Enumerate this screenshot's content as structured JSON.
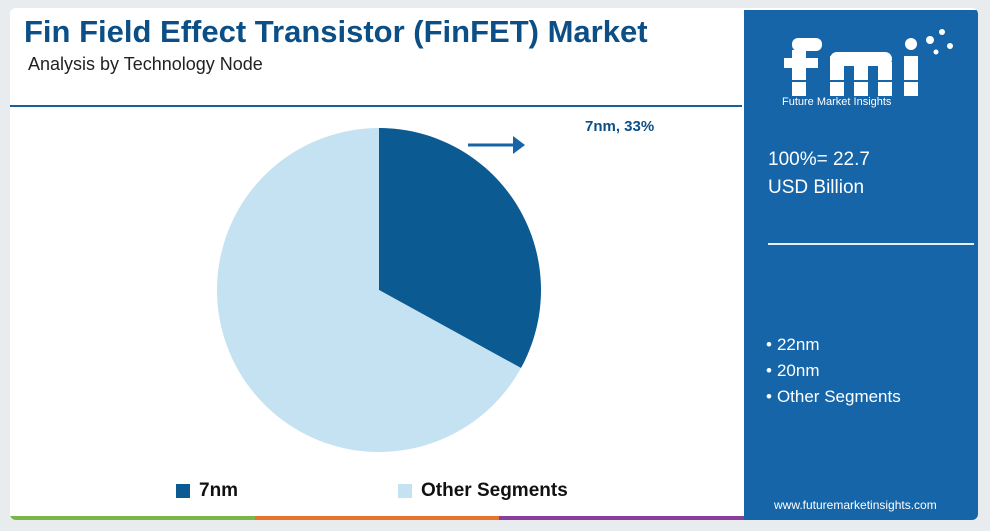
{
  "title": "Fin Field Effect Transistor (FinFET) Market",
  "subtitle": "Analysis by Technology Node",
  "chart_data": {
    "type": "pie",
    "categories": [
      "7nm",
      "Other Segments"
    ],
    "values": [
      33,
      67
    ],
    "unit": "%",
    "colors": [
      "#0c5a92",
      "#c5e2f2"
    ],
    "data_labels": [
      "7nm, 33%"
    ],
    "legend": [
      "7nm",
      "Other Segments"
    ],
    "legend_position": "bottom"
  },
  "side_panel": {
    "logo_text": "Future Market Insights",
    "total_line1": "100%= 22.7",
    "total_line2": "USD Billion",
    "segments": [
      "22nm",
      "20nm",
      "Other Segments"
    ],
    "website": "www.futuremarketinsights.com"
  },
  "colors": {
    "brand_blue": "#1565a8",
    "title_blue": "#0b4f86",
    "bar_green": "#7ab648",
    "bar_orange": "#e8732c",
    "bar_purple": "#8a3d9a"
  }
}
